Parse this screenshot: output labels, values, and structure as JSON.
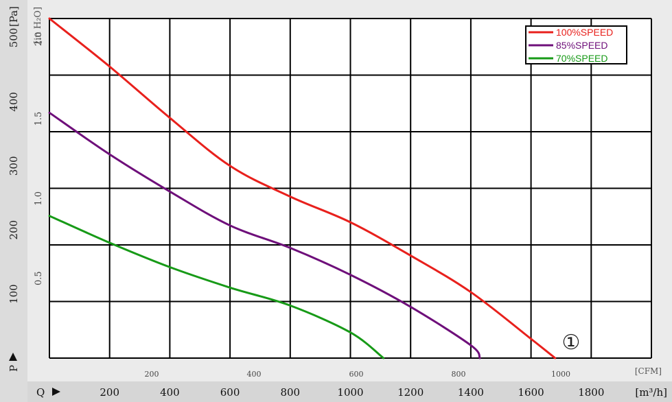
{
  "chart_data": {
    "type": "line",
    "pa_axis": {
      "unit": "[Pa]",
      "symbol": "P",
      "ticks": [
        100,
        200,
        300,
        400,
        500
      ],
      "range": [
        0,
        530
      ]
    },
    "inh2o_axis": {
      "unit": "[in H₂O]",
      "ticks": [
        "0.5",
        "1.0",
        "1.5",
        "2.0"
      ],
      "tick_values": [
        0.5,
        1.0,
        1.5,
        2.0
      ]
    },
    "cfm_axis": {
      "unit": "[CFM]",
      "ticks": [
        200,
        400,
        600,
        800,
        1000
      ],
      "range": [
        0,
        1190
      ]
    },
    "m3h_axis": {
      "unit": "[m³/h]",
      "symbol": "Q",
      "ticks": [
        200,
        400,
        600,
        800,
        1000,
        1200,
        1400,
        1600,
        1800
      ],
      "range": [
        0,
        2000
      ]
    },
    "series": [
      {
        "name": "100%SPEED",
        "color": "#e8201c",
        "x_unit": "m3/h",
        "y_unit": "Pa",
        "points": [
          [
            0,
            530
          ],
          [
            200,
            455
          ],
          [
            400,
            375
          ],
          [
            600,
            300
          ],
          [
            800,
            252
          ],
          [
            1000,
            212
          ],
          [
            1200,
            160
          ],
          [
            1400,
            103
          ],
          [
            1600,
            30
          ],
          [
            1680,
            0
          ]
        ]
      },
      {
        "name": "85%SPEED",
        "color": "#6e0f7a",
        "x_unit": "m3/h",
        "y_unit": "Pa",
        "points": [
          [
            0,
            383
          ],
          [
            200,
            318
          ],
          [
            400,
            260
          ],
          [
            600,
            207
          ],
          [
            800,
            172
          ],
          [
            1000,
            130
          ],
          [
            1200,
            80
          ],
          [
            1400,
            20
          ],
          [
            1430,
            0
          ]
        ]
      },
      {
        "name": "70%SPEED",
        "color": "#179a17",
        "x_unit": "m3/h",
        "y_unit": "Pa",
        "points": [
          [
            0,
            222
          ],
          [
            200,
            180
          ],
          [
            400,
            142
          ],
          [
            600,
            110
          ],
          [
            800,
            82
          ],
          [
            1000,
            40
          ],
          [
            1110,
            0
          ]
        ]
      }
    ],
    "legend_position": "top-right",
    "grid": true,
    "annotation": "①"
  }
}
